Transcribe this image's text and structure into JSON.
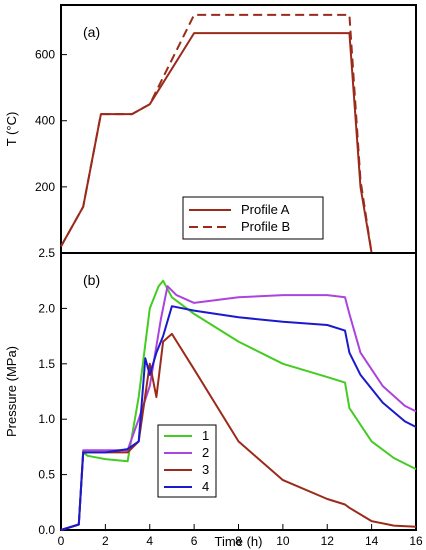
{
  "chart_data": [
    {
      "type": "line",
      "panel_label": "(a)",
      "xlabel": "",
      "ylabel": "T (°C)",
      "xlim": [
        0,
        16
      ],
      "ylim": [
        0,
        750
      ],
      "y_ticks": [
        200,
        400,
        600
      ],
      "x_ticks": [],
      "grid": false,
      "legend_position": "bottom-right",
      "series": [
        {
          "name": "Profile A",
          "color": "#9b2a1b",
          "dash": "solid",
          "x": [
            0,
            1,
            1.8,
            3.2,
            4,
            6,
            13,
            13.5,
            14
          ],
          "y": [
            20,
            140,
            420,
            420,
            450,
            665,
            665,
            200,
            0
          ]
        },
        {
          "name": "Profile B",
          "color": "#9b2a1b",
          "dash": "dashed",
          "x": [
            0,
            1,
            1.8,
            3.2,
            4,
            6,
            13,
            13.5,
            14
          ],
          "y": [
            20,
            140,
            420,
            420,
            450,
            720,
            720,
            220,
            0
          ]
        }
      ]
    },
    {
      "type": "line",
      "panel_label": "(b)",
      "xlabel": "Time (h)",
      "ylabel": "Pressure (MPa)",
      "xlim": [
        0,
        16
      ],
      "ylim": [
        0,
        2.5
      ],
      "x_ticks": [
        0,
        2,
        4,
        6,
        8,
        10,
        12,
        14,
        16
      ],
      "y_ticks": [
        "0.0",
        "0.5",
        "1.0",
        "1.5",
        "2.0",
        "2.5"
      ],
      "grid": false,
      "legend_position": "bottom-left",
      "series": [
        {
          "name": "1",
          "color": "#44cc22",
          "x": [
            0,
            0.8,
            1.0,
            1.2,
            2.0,
            3.0,
            3.5,
            4.0,
            4.4,
            4.6,
            5.0,
            6.0,
            8.0,
            10.0,
            12.0,
            12.8,
            13.0,
            14.0,
            15.0,
            16.0
          ],
          "y": [
            0,
            0.05,
            0.7,
            0.67,
            0.64,
            0.62,
            1.2,
            2.0,
            2.2,
            2.25,
            2.1,
            1.95,
            1.7,
            1.5,
            1.38,
            1.33,
            1.1,
            0.8,
            0.65,
            0.55
          ]
        },
        {
          "name": "2",
          "color": "#aa44dd",
          "x": [
            0,
            0.8,
            1.0,
            2.0,
            3.0,
            3.5,
            4.0,
            4.5,
            4.8,
            5.2,
            6.0,
            8.0,
            10.0,
            12.0,
            12.8,
            13.0,
            13.5,
            14.5,
            15.5,
            16.0
          ],
          "y": [
            0,
            0.05,
            0.72,
            0.72,
            0.72,
            1.0,
            1.3,
            1.9,
            2.2,
            2.12,
            2.05,
            2.1,
            2.12,
            2.12,
            2.1,
            1.95,
            1.6,
            1.3,
            1.12,
            1.07
          ]
        },
        {
          "name": "3",
          "color": "#9b2a1b",
          "x": [
            0,
            0.8,
            1.0,
            2.0,
            3.0,
            3.5,
            4.0,
            4.3,
            4.6,
            5.0,
            6.0,
            8.0,
            10.0,
            12.0,
            12.8,
            13.0,
            14.0,
            15.0,
            16.0
          ],
          "y": [
            0,
            0.05,
            0.7,
            0.7,
            0.7,
            0.8,
            1.5,
            1.2,
            1.7,
            1.77,
            1.45,
            0.8,
            0.45,
            0.28,
            0.23,
            0.2,
            0.08,
            0.04,
            0.03
          ]
        },
        {
          "name": "4",
          "color": "#1a1acc",
          "x": [
            0,
            0.8,
            1.0,
            2.0,
            3.0,
            3.5,
            3.8,
            4.0,
            4.3,
            4.6,
            5.0,
            6.0,
            8.0,
            10.0,
            12.0,
            12.8,
            13.0,
            13.5,
            14.5,
            15.5,
            16.0
          ],
          "y": [
            0,
            0.05,
            0.7,
            0.7,
            0.73,
            0.8,
            1.55,
            1.4,
            1.6,
            1.75,
            2.02,
            1.98,
            1.92,
            1.88,
            1.85,
            1.8,
            1.6,
            1.4,
            1.15,
            0.98,
            0.93
          ]
        }
      ]
    }
  ]
}
